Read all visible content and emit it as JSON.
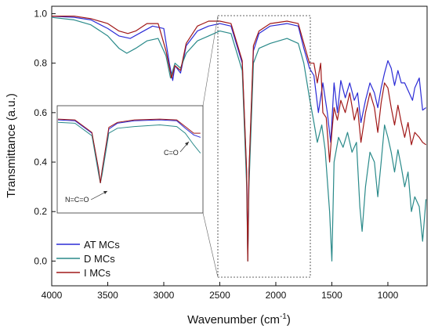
{
  "chart_data": {
    "type": "line",
    "xlabel": "Wavenumber (cm",
    "xlabel_sup": "-1",
    "xlabel_tail": ")",
    "ylabel": "Transmittance (a.u.)",
    "xlim": [
      4000,
      650
    ],
    "ylim": [
      -0.1,
      1.03
    ],
    "x_reversed": true,
    "x_ticks": [
      4000,
      3500,
      3000,
      2500,
      2000,
      1500,
      1000
    ],
    "x_tick_labels": [
      "4000",
      "3500",
      "3000",
      "2500",
      "2000",
      "1500",
      "1000"
    ],
    "y_ticks": [
      0.0,
      0.2,
      0.4,
      0.6,
      0.8,
      1.0
    ],
    "y_tick_labels": [
      "0.0",
      "0.2",
      "0.4",
      "0.6",
      "0.8",
      "1.0"
    ],
    "legend_position": "bottom-left",
    "series": [
      {
        "name": "AT MCs",
        "color": "#2b2bd6",
        "points": [
          [
            4000,
            0.99
          ],
          [
            3800,
            0.985
          ],
          [
            3650,
            0.975
          ],
          [
            3500,
            0.94
          ],
          [
            3400,
            0.91
          ],
          [
            3300,
            0.9
          ],
          [
            3200,
            0.925
          ],
          [
            3100,
            0.95
          ],
          [
            3000,
            0.94
          ],
          [
            2950,
            0.8
          ],
          [
            2920,
            0.73
          ],
          [
            2900,
            0.79
          ],
          [
            2850,
            0.76
          ],
          [
            2800,
            0.87
          ],
          [
            2700,
            0.93
          ],
          [
            2600,
            0.95
          ],
          [
            2500,
            0.96
          ],
          [
            2400,
            0.95
          ],
          [
            2300,
            0.8
          ],
          [
            2260,
            0.35
          ],
          [
            2250,
            0.02
          ],
          [
            2240,
            0.35
          ],
          [
            2200,
            0.85
          ],
          [
            2150,
            0.92
          ],
          [
            2050,
            0.95
          ],
          [
            1900,
            0.96
          ],
          [
            1800,
            0.95
          ],
          [
            1750,
            0.86
          ],
          [
            1700,
            0.78
          ],
          [
            1660,
            0.75
          ],
          [
            1620,
            0.6
          ],
          [
            1580,
            0.72
          ],
          [
            1540,
            0.6
          ],
          [
            1510,
            0.48
          ],
          [
            1480,
            0.72
          ],
          [
            1450,
            0.6
          ],
          [
            1420,
            0.73
          ],
          [
            1380,
            0.66
          ],
          [
            1340,
            0.72
          ],
          [
            1300,
            0.65
          ],
          [
            1270,
            0.68
          ],
          [
            1240,
            0.56
          ],
          [
            1200,
            0.65
          ],
          [
            1160,
            0.72
          ],
          [
            1120,
            0.68
          ],
          [
            1090,
            0.62
          ],
          [
            1060,
            0.7
          ],
          [
            1030,
            0.76
          ],
          [
            1000,
            0.81
          ],
          [
            970,
            0.78
          ],
          [
            940,
            0.71
          ],
          [
            910,
            0.77
          ],
          [
            880,
            0.72
          ],
          [
            850,
            0.72
          ],
          [
            820,
            0.69
          ],
          [
            780,
            0.65
          ],
          [
            760,
            0.7
          ],
          [
            720,
            0.74
          ],
          [
            690,
            0.61
          ],
          [
            660,
            0.62
          ]
        ]
      },
      {
        "name": "D MCs",
        "color": "#2a8a8a",
        "points": [
          [
            4000,
            0.985
          ],
          [
            3800,
            0.975
          ],
          [
            3650,
            0.955
          ],
          [
            3500,
            0.91
          ],
          [
            3400,
            0.86
          ],
          [
            3330,
            0.84
          ],
          [
            3250,
            0.86
          ],
          [
            3150,
            0.89
          ],
          [
            3050,
            0.9
          ],
          [
            2980,
            0.83
          ],
          [
            2940,
            0.74
          ],
          [
            2900,
            0.8
          ],
          [
            2850,
            0.78
          ],
          [
            2800,
            0.84
          ],
          [
            2700,
            0.89
          ],
          [
            2600,
            0.91
          ],
          [
            2500,
            0.93
          ],
          [
            2400,
            0.92
          ],
          [
            2300,
            0.77
          ],
          [
            2260,
            0.3
          ],
          [
            2250,
            0.0
          ],
          [
            2240,
            0.3
          ],
          [
            2200,
            0.8
          ],
          [
            2150,
            0.86
          ],
          [
            2050,
            0.88
          ],
          [
            1900,
            0.9
          ],
          [
            1800,
            0.88
          ],
          [
            1750,
            0.8
          ],
          [
            1700,
            0.66
          ],
          [
            1660,
            0.56
          ],
          [
            1630,
            0.48
          ],
          [
            1590,
            0.55
          ],
          [
            1560,
            0.45
          ],
          [
            1520,
            0.2
          ],
          [
            1500,
            0.0
          ],
          [
            1480,
            0.4
          ],
          [
            1440,
            0.5
          ],
          [
            1400,
            0.46
          ],
          [
            1360,
            0.52
          ],
          [
            1320,
            0.44
          ],
          [
            1280,
            0.48
          ],
          [
            1250,
            0.22
          ],
          [
            1230,
            0.12
          ],
          [
            1200,
            0.3
          ],
          [
            1160,
            0.44
          ],
          [
            1120,
            0.4
          ],
          [
            1090,
            0.26
          ],
          [
            1060,
            0.4
          ],
          [
            1030,
            0.55
          ],
          [
            1000,
            0.5
          ],
          [
            970,
            0.44
          ],
          [
            940,
            0.36
          ],
          [
            910,
            0.45
          ],
          [
            880,
            0.38
          ],
          [
            850,
            0.3
          ],
          [
            820,
            0.36
          ],
          [
            790,
            0.2
          ],
          [
            760,
            0.26
          ],
          [
            720,
            0.22
          ],
          [
            690,
            0.08
          ],
          [
            660,
            0.25
          ]
        ]
      },
      {
        "name": "I MCs",
        "color": "#a01818",
        "points": [
          [
            4000,
            0.99
          ],
          [
            3800,
            0.99
          ],
          [
            3650,
            0.98
          ],
          [
            3500,
            0.96
          ],
          [
            3400,
            0.93
          ],
          [
            3320,
            0.92
          ],
          [
            3250,
            0.93
          ],
          [
            3150,
            0.96
          ],
          [
            3050,
            0.96
          ],
          [
            2980,
            0.85
          ],
          [
            2930,
            0.74
          ],
          [
            2900,
            0.79
          ],
          [
            2850,
            0.77
          ],
          [
            2800,
            0.88
          ],
          [
            2700,
            0.95
          ],
          [
            2600,
            0.97
          ],
          [
            2500,
            0.97
          ],
          [
            2400,
            0.96
          ],
          [
            2300,
            0.81
          ],
          [
            2260,
            0.36
          ],
          [
            2250,
            0.0
          ],
          [
            2240,
            0.36
          ],
          [
            2200,
            0.87
          ],
          [
            2150,
            0.93
          ],
          [
            2050,
            0.96
          ],
          [
            1900,
            0.97
          ],
          [
            1800,
            0.96
          ],
          [
            1750,
            0.88
          ],
          [
            1700,
            0.8
          ],
          [
            1660,
            0.8
          ],
          [
            1630,
            0.72
          ],
          [
            1600,
            0.8
          ],
          [
            1580,
            0.6
          ],
          [
            1550,
            0.58
          ],
          [
            1520,
            0.4
          ],
          [
            1500,
            0.52
          ],
          [
            1480,
            0.62
          ],
          [
            1450,
            0.57
          ],
          [
            1420,
            0.65
          ],
          [
            1380,
            0.6
          ],
          [
            1340,
            0.68
          ],
          [
            1300,
            0.57
          ],
          [
            1270,
            0.62
          ],
          [
            1240,
            0.48
          ],
          [
            1200,
            0.6
          ],
          [
            1160,
            0.68
          ],
          [
            1120,
            0.62
          ],
          [
            1090,
            0.52
          ],
          [
            1060,
            0.64
          ],
          [
            1030,
            0.72
          ],
          [
            1000,
            0.7
          ],
          [
            970,
            0.62
          ],
          [
            940,
            0.55
          ],
          [
            910,
            0.63
          ],
          [
            880,
            0.56
          ],
          [
            850,
            0.5
          ],
          [
            820,
            0.56
          ],
          [
            790,
            0.47
          ],
          [
            760,
            0.52
          ],
          [
            720,
            0.5
          ],
          [
            690,
            0.48
          ],
          [
            660,
            0.47
          ]
        ]
      }
    ],
    "inset": {
      "x_range": [
        2500,
        1650
      ],
      "labels": [
        "N=C=O",
        "C=O"
      ]
    }
  }
}
